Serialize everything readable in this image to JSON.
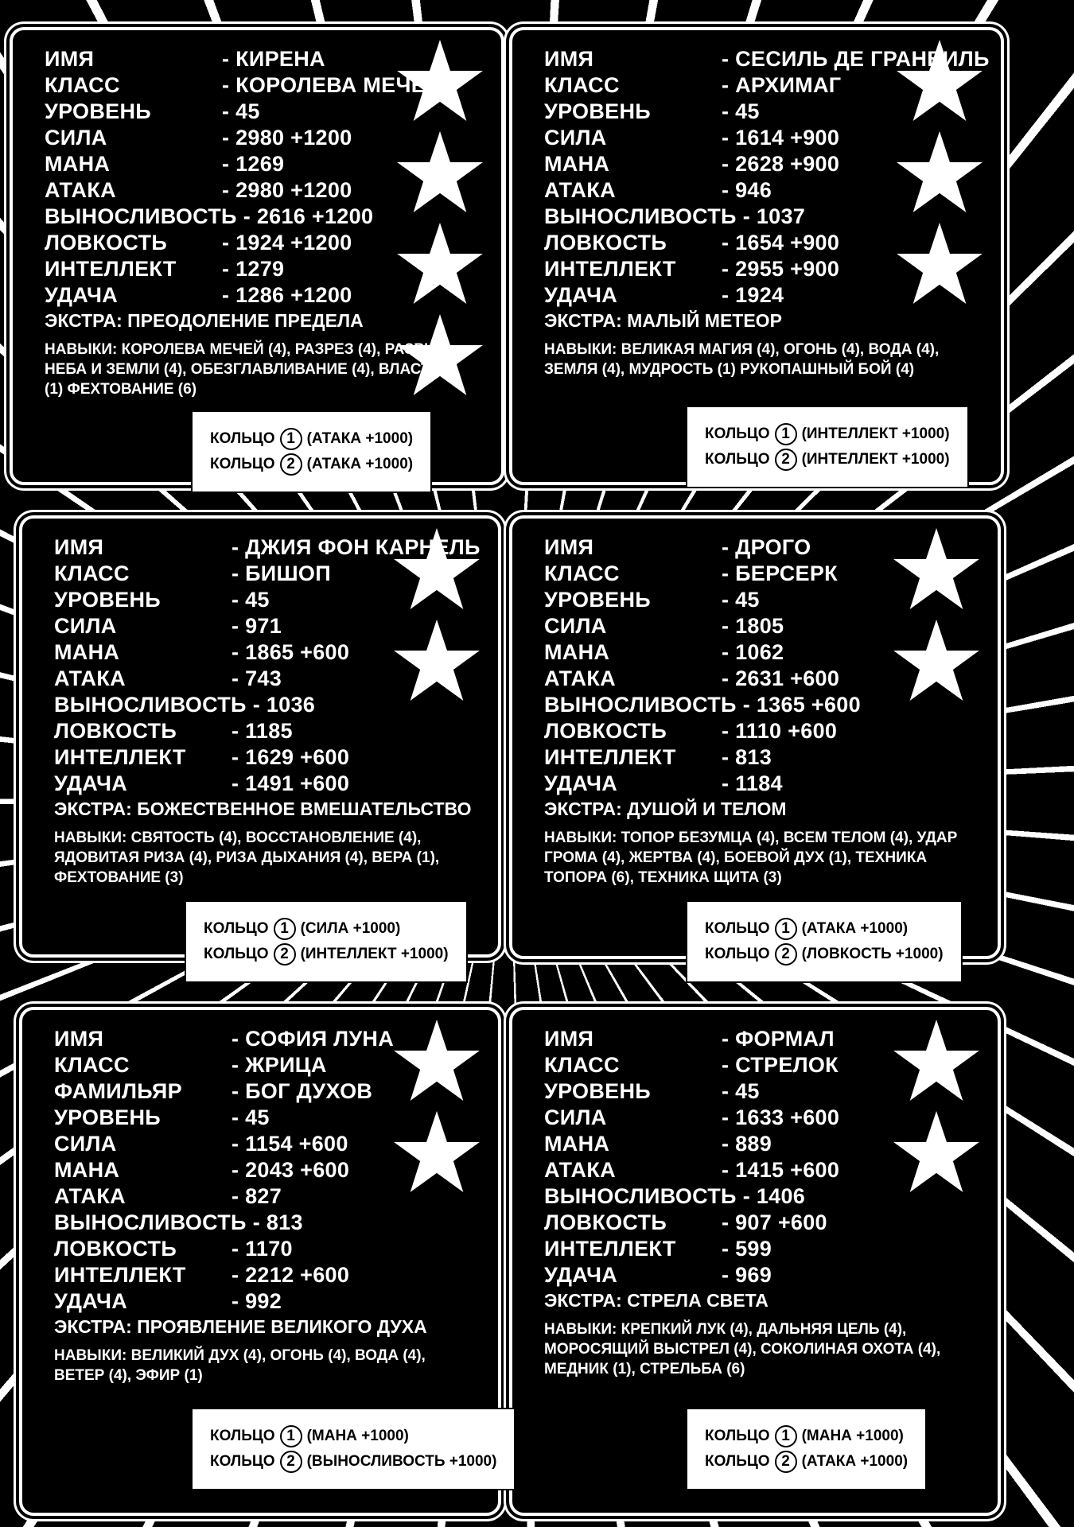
{
  "ring_label": "КОЛЬЦО",
  "panels": [
    {
      "stats": [
        [
          "ИМЯ",
          "- КИРЕНА"
        ],
        [
          "КЛАСС",
          "- КОРОЛЕВА МЕЧЕЙ"
        ],
        [
          "УРОВЕНЬ",
          "- 45"
        ],
        [
          "СИЛА",
          "- 2980 +1200"
        ],
        [
          "МАНА",
          "- 1269"
        ],
        [
          "АТАКА",
          "- 2980 +1200"
        ],
        [
          "ВЫНОСЛИВОСТЬ",
          "- 2616 +1200"
        ],
        [
          "ЛОВКОСТЬ",
          "- 1924 +1200"
        ],
        [
          "ИНТЕЛЛЕКТ",
          "- 1279"
        ],
        [
          "УДАЧА",
          "- 1286 +1200"
        ]
      ],
      "extra": "ЭКСТРА: ПРЕОДОЛЕНИЕ ПРЕДЕЛА",
      "skills": "НАВЫКИ: КОРОЛЕВА МЕЧЕЙ (4), РАЗРЕЗ (4), РАЗРЫВ НЕБА И ЗЕМЛИ (4), ОБЕЗГЛАВЛИВАНИЕ (4), ВЛАСТЬ (1) ФЕХТОВАНИЕ (6)",
      "rings": [
        [
          "1",
          "(АТАКА +1000)"
        ],
        [
          "2",
          "(АТАКА +1000)"
        ]
      ],
      "stars": 4
    },
    {
      "stats": [
        [
          "ИМЯ",
          "- СЕСИЛЬ ДЕ ГРАНВИЛЬ"
        ],
        [
          "КЛАСС",
          "- АРХИМАГ"
        ],
        [
          "УРОВЕНЬ",
          "- 45"
        ],
        [
          "СИЛА",
          "- 1614 +900"
        ],
        [
          "МАНА",
          "- 2628 +900"
        ],
        [
          "АТАКА",
          "- 946"
        ],
        [
          "ВЫНОСЛИВОСТЬ",
          "- 1037"
        ],
        [
          "ЛОВКОСТЬ",
          "- 1654 +900"
        ],
        [
          "ИНТЕЛЛЕКТ",
          "- 2955 +900"
        ],
        [
          "УДАЧА",
          "- 1924"
        ]
      ],
      "extra": "ЭКСТРА: МАЛЫЙ МЕТЕОР",
      "skills": "НАВЫКИ: ВЕЛИКАЯ МАГИЯ (4), ОГОНЬ (4), ВОДА (4), ЗЕМЛЯ (4), МУДРОСТЬ (1) РУКОПАШНЫЙ БОЙ (4)",
      "rings": [
        [
          "1",
          "(ИНТЕЛЛЕКТ +1000)"
        ],
        [
          "2",
          "(ИНТЕЛЛЕКТ +1000)"
        ]
      ],
      "stars": 3
    },
    {
      "stats": [
        [
          "ИМЯ",
          "- ДЖИЯ ФОН КАРНЕЛЬ"
        ],
        [
          "КЛАСС",
          "- БИШОП"
        ],
        [
          "УРОВЕНЬ",
          "- 45"
        ],
        [
          "СИЛА",
          "- 971"
        ],
        [
          "МАНА",
          "- 1865 +600"
        ],
        [
          "АТАКА",
          "- 743"
        ],
        [
          "ВЫНОСЛИВОСТЬ",
          "- 1036"
        ],
        [
          "ЛОВКОСТЬ",
          "- 1185"
        ],
        [
          "ИНТЕЛЛЕКТ",
          "- 1629 +600"
        ],
        [
          "УДАЧА",
          "- 1491 +600"
        ]
      ],
      "extra": "ЭКСТРА: БОЖЕСТВЕННОЕ ВМЕШАТЕЛЬСТВО",
      "skills": "НАВЫКИ: СВЯТОСТЬ (4), ВОССТАНОВЛЕНИЕ (4), ЯДОВИТАЯ РИЗА (4), РИЗА ДЫХАНИЯ (4), ВЕРА (1), ФЕХТОВАНИЕ (3)",
      "rings": [
        [
          "1",
          "(СИЛА +1000)"
        ],
        [
          "2",
          "(ИНТЕЛЛЕКТ +1000)"
        ]
      ],
      "stars": 2
    },
    {
      "stats": [
        [
          "ИМЯ",
          "- ДРОГО"
        ],
        [
          "КЛАСС",
          "- БЕРСЕРК"
        ],
        [
          "УРОВЕНЬ",
          "- 45"
        ],
        [
          "СИЛА",
          "- 1805"
        ],
        [
          "МАНА",
          "- 1062"
        ],
        [
          "АТАКА",
          "- 2631 +600"
        ],
        [
          "ВЫНОСЛИВОСТЬ",
          "- 1365 +600"
        ],
        [
          "ЛОВКОСТЬ",
          "- 1110 +600"
        ],
        [
          "ИНТЕЛЛЕКТ",
          "- 813"
        ],
        [
          "УДАЧА",
          "- 1184"
        ]
      ],
      "extra": "ЭКСТРА: ДУШОЙ И ТЕЛОМ",
      "skills": "НАВЫКИ: ТОПОР БЕЗУМЦА (4), ВСЕМ ТЕЛОМ (4), УДАР ГРОМА (4), ЖЕРТВА (4), БОЕВОЙ ДУХ (1), ТЕХНИКА ТОПОРА (6), ТЕХНИКА ЩИТА (3)",
      "rings": [
        [
          "1",
          "(АТАКА +1000)"
        ],
        [
          "2",
          "(ЛОВКОСТЬ +1000)"
        ]
      ],
      "stars": 2
    },
    {
      "stats": [
        [
          "ИМЯ",
          "- СОФИЯ ЛУНА"
        ],
        [
          "КЛАСС",
          "- ЖРИЦА"
        ],
        [
          "ФАМИЛЬЯР",
          "- БОГ ДУХОВ"
        ],
        [
          "УРОВЕНЬ",
          "- 45"
        ],
        [
          "СИЛА",
          "- 1154 +600"
        ],
        [
          "МАНА",
          "- 2043 +600"
        ],
        [
          "АТАКА",
          "- 827"
        ],
        [
          "ВЫНОСЛИВОСТЬ",
          "- 813"
        ],
        [
          "ЛОВКОСТЬ",
          "- 1170"
        ],
        [
          "ИНТЕЛЛЕКТ",
          "- 2212 +600"
        ],
        [
          "УДАЧА",
          "- 992"
        ]
      ],
      "extra": "ЭКСТРА: ПРОЯВЛЕНИЕ ВЕЛИКОГО ДУХА",
      "skills": "НАВЫКИ: ВЕЛИКИЙ ДУХ (4), ОГОНЬ (4), ВОДА (4), ВЕТЕР (4), ЭФИР (1)",
      "rings": [
        [
          "1",
          "(МАНА +1000)"
        ],
        [
          "2",
          "(ВЫНОСЛИВОСТЬ +1000)"
        ]
      ],
      "stars": 2
    },
    {
      "stats": [
        [
          "ИМЯ",
          "- ФОРМАЛ"
        ],
        [
          "КЛАСС",
          "- СТРЕЛОК"
        ],
        [
          "УРОВЕНЬ",
          "- 45"
        ],
        [
          "СИЛА",
          "- 1633 +600"
        ],
        [
          "МАНА",
          "- 889"
        ],
        [
          "АТАКА",
          "- 1415 +600"
        ],
        [
          "ВЫНОСЛИВОСТЬ",
          "- 1406"
        ],
        [
          "ЛОВКОСТЬ",
          "- 907 +600"
        ],
        [
          "ИНТЕЛЛЕКТ",
          "- 599"
        ],
        [
          "УДАЧА",
          "- 969"
        ]
      ],
      "extra": "ЭКСТРА: СТРЕЛА СВЕТА",
      "skills": "НАВЫКИ: КРЕПКИЙ ЛУК (4), ДАЛЬНЯЯ ЦЕЛЬ (4), МОРОСЯЩИЙ ВЫСТРЕЛ (4), СОКОЛИНАЯ ОХОТА (4), МЕДНИК (1), СТРЕЛЬБА (6)",
      "rings": [
        [
          "1",
          "(МАНА +1000)"
        ],
        [
          "2",
          "(АТАКА +1000)"
        ]
      ],
      "stars": 2
    }
  ]
}
